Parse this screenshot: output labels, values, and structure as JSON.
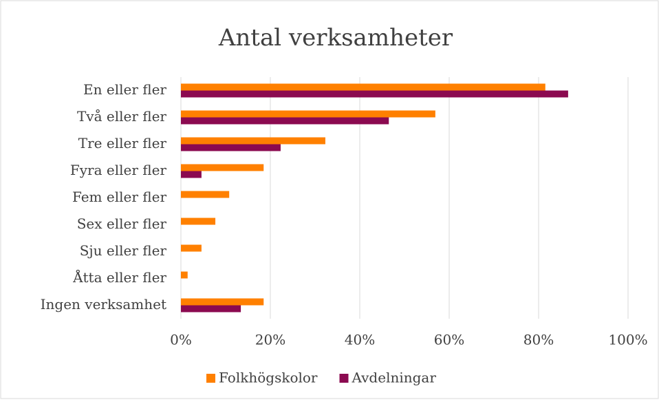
{
  "chart_data": {
    "type": "barh",
    "title": "Antal verksamheter",
    "categories": [
      "En eller fler",
      "Två eller fler",
      "Tre eller fler",
      "Fyra eller fler",
      "Fem eller fler",
      "Sex eller fler",
      "Sju eller fler",
      "Åtta eller fler",
      "Ingen verksamhet"
    ],
    "series": [
      {
        "name": "Folkhögskolor",
        "color": "#ff8000",
        "values": [
          81.5,
          56.9,
          32.3,
          18.5,
          10.8,
          7.7,
          4.6,
          1.5,
          18.5
        ]
      },
      {
        "name": "Avdelningar",
        "color": "#8b0a50",
        "values": [
          86.6,
          46.5,
          22.3,
          4.6,
          0,
          0,
          0,
          0,
          13.4
        ]
      }
    ],
    "xlim": [
      0,
      100
    ],
    "xticks": [
      {
        "value": 0,
        "label": "0%"
      },
      {
        "value": 20,
        "label": "20%"
      },
      {
        "value": 40,
        "label": "40%"
      },
      {
        "value": 60,
        "label": "60%"
      },
      {
        "value": 80,
        "label": "80%"
      },
      {
        "value": 100,
        "label": "100%"
      }
    ],
    "grid": true,
    "legend": "bottom"
  }
}
